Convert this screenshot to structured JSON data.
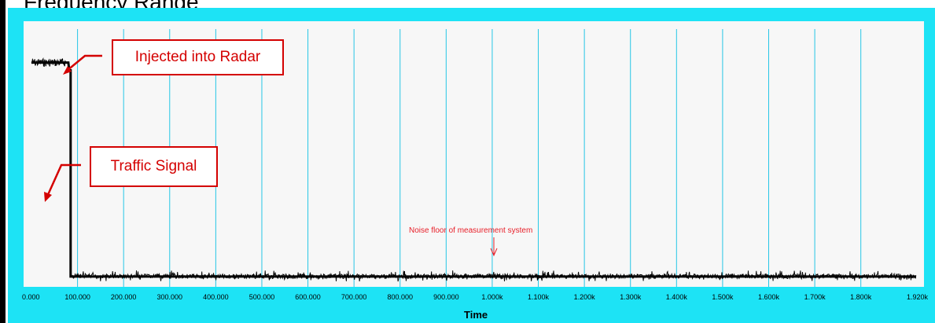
{
  "page": {
    "title": "Frequency Range"
  },
  "chart_data": {
    "type": "line",
    "title": "",
    "xlabel": "Time",
    "ylabel": "",
    "x_tick_labels": [
      "0.000",
      "100.000",
      "200.000",
      "300.000",
      "400.000",
      "500.000",
      "600.000",
      "700.000",
      "800.000",
      "900.000",
      "1.000k",
      "1.100k",
      "1.200k",
      "1.300k",
      "1.400k",
      "1.500k",
      "1.600k",
      "1.700k",
      "1.800k",
      "1.920k"
    ],
    "xlim": [
      0,
      1920
    ],
    "ylim": [
      0,
      1
    ],
    "grid": {
      "vertical": true,
      "horizontal": false,
      "color": "#26c6e6"
    },
    "series": [
      {
        "color": "#000000",
        "points": [
          [
            0,
            0.87
          ],
          [
            80,
            0.87
          ],
          [
            82,
            0.84
          ],
          [
            85,
            0.84
          ],
          [
            85,
            0.04
          ],
          [
            1920,
            0.04
          ]
        ]
      }
    ],
    "annotations": [
      {
        "text": "Injected into Radar",
        "style": "callout-box"
      },
      {
        "text": "Traffic Signal",
        "style": "callout-box"
      },
      {
        "text": "Noise floor of measurement system",
        "style": "note-with-arrow"
      }
    ]
  },
  "colors": {
    "frame": "#1de3f5",
    "plot_bg": "#f7f7f7",
    "grid": "#26c6e6",
    "annotation": "#d40000"
  }
}
